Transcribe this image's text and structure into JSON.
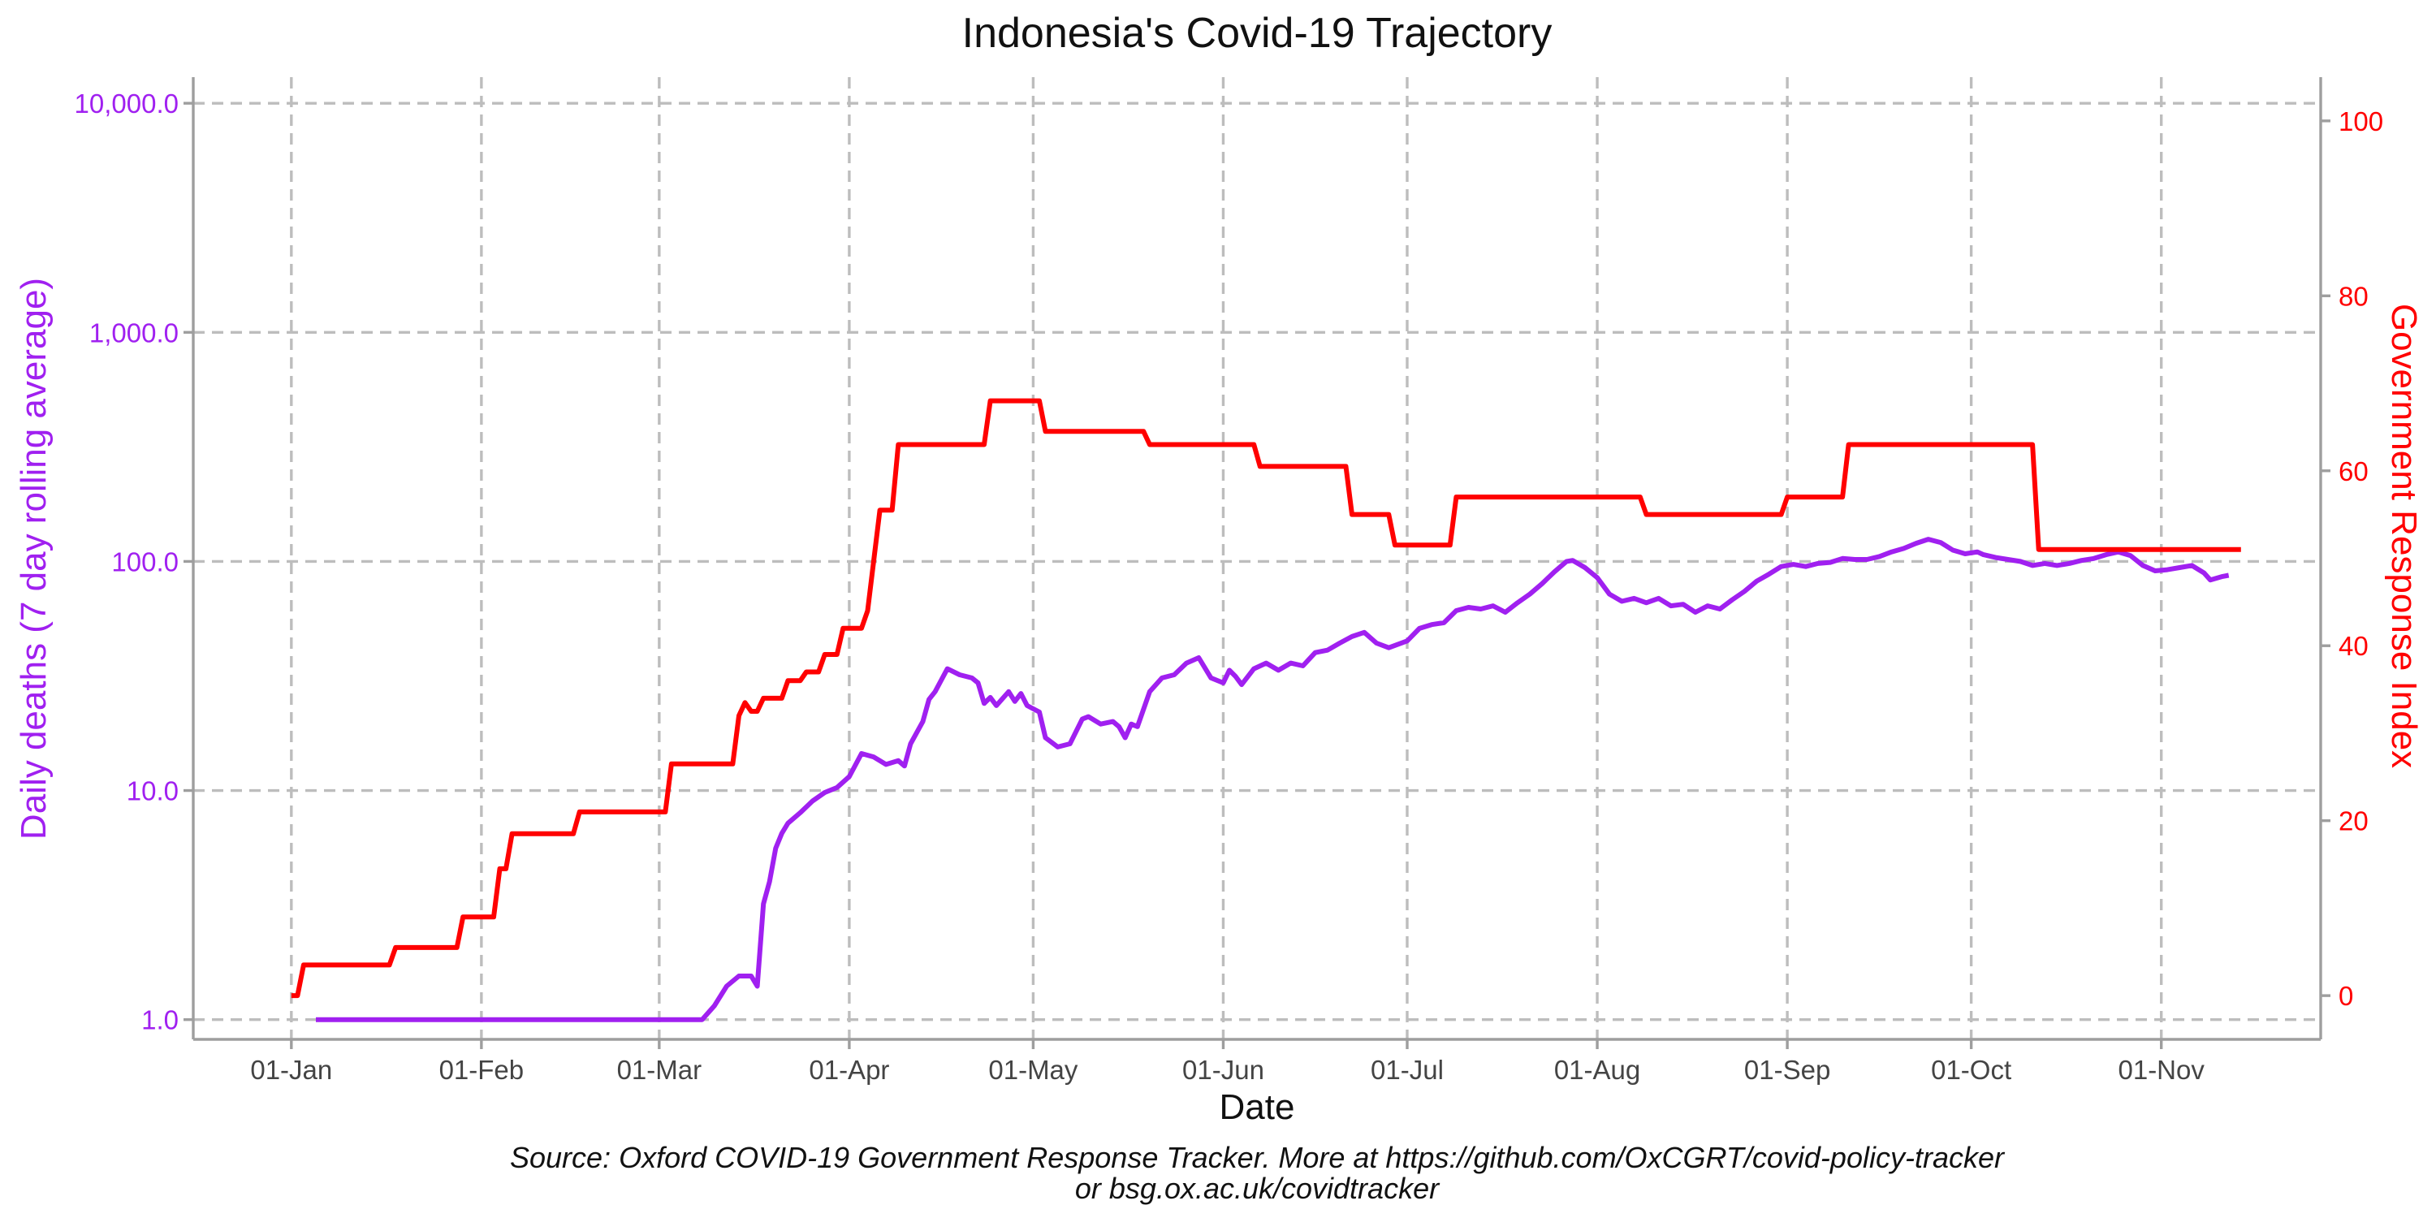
{
  "chart_data": {
    "type": "line",
    "title": "Indonesia's Covid-19 Trajectory",
    "xlabel": "Date",
    "ylabel_left": "Daily deaths (7 day rolling average)",
    "ylabel_right": "Government Response Index",
    "caption_lines": [
      "Source: Oxford COVID-19 Government Response Tracker. More at https://github.com/OxCGRT/covid-policy-tracker",
      "or bsg.ox.ac.uk/covidtracker"
    ],
    "x_ticks": [
      {
        "label": "01-Jan",
        "date": "2020-01-01"
      },
      {
        "label": "01-Feb",
        "date": "2020-02-01"
      },
      {
        "label": "01-Mar",
        "date": "2020-03-01"
      },
      {
        "label": "01-Apr",
        "date": "2020-04-01"
      },
      {
        "label": "01-May",
        "date": "2020-05-01"
      },
      {
        "label": "01-Jun",
        "date": "2020-06-01"
      },
      {
        "label": "01-Jul",
        "date": "2020-07-01"
      },
      {
        "label": "01-Aug",
        "date": "2020-08-01"
      },
      {
        "label": "01-Sep",
        "date": "2020-09-01"
      },
      {
        "label": "01-Oct",
        "date": "2020-10-01"
      },
      {
        "label": "01-Nov",
        "date": "2020-11-01"
      }
    ],
    "xlim": [
      "2019-12-16",
      "2020-11-27"
    ],
    "y_left": {
      "scale": "log10",
      "range": [
        0.82,
        13000
      ],
      "ticks": [
        1,
        10,
        100,
        1000,
        10000
      ],
      "tick_labels": [
        "1.0",
        "10.0",
        "100.0",
        "1,000.0",
        "10,000.0"
      ]
    },
    "y_right": {
      "scale": "linear",
      "range": [
        -5,
        105
      ],
      "ticks": [
        0,
        20,
        40,
        60,
        80,
        100
      ],
      "tick_labels": [
        "0",
        "20",
        "40",
        "60",
        "80",
        "100"
      ]
    },
    "grid": true,
    "colors": {
      "deaths": "#a020f0",
      "response": "#ff0000",
      "grid": "#bdbdbd",
      "axis": "#9e9e9e"
    },
    "series": [
      {
        "key": "deaths",
        "axis": "left",
        "color": "#a020f0",
        "points": [
          [
            "2020-01-05",
            1
          ],
          [
            "2020-03-08",
            1
          ],
          [
            "2020-03-10",
            1.15
          ],
          [
            "2020-03-12",
            1.4
          ],
          [
            "2020-03-14",
            1.55
          ],
          [
            "2020-03-16",
            1.55
          ],
          [
            "2020-03-17",
            1.4
          ],
          [
            "2020-03-18",
            3.2
          ],
          [
            "2020-03-19",
            4
          ],
          [
            "2020-03-20",
            5.6
          ],
          [
            "2020-03-21",
            6.5
          ],
          [
            "2020-03-22",
            7.2
          ],
          [
            "2020-03-24",
            8
          ],
          [
            "2020-03-26",
            9
          ],
          [
            "2020-03-28",
            9.8
          ],
          [
            "2020-03-30",
            10.3
          ],
          [
            "2020-04-01",
            11.5
          ],
          [
            "2020-04-03",
            14.5
          ],
          [
            "2020-04-05",
            14
          ],
          [
            "2020-04-07",
            13
          ],
          [
            "2020-04-09",
            13.5
          ],
          [
            "2020-04-10",
            12.8
          ],
          [
            "2020-04-11",
            16
          ],
          [
            "2020-04-13",
            20
          ],
          [
            "2020-04-14",
            25
          ],
          [
            "2020-04-15",
            27
          ],
          [
            "2020-04-17",
            34
          ],
          [
            "2020-04-19",
            32
          ],
          [
            "2020-04-21",
            31
          ],
          [
            "2020-04-22",
            29.5
          ],
          [
            "2020-04-23",
            24
          ],
          [
            "2020-04-24",
            25.5
          ],
          [
            "2020-04-25",
            23.5
          ],
          [
            "2020-04-27",
            27
          ],
          [
            "2020-04-28",
            24.5
          ],
          [
            "2020-04-29",
            26.5
          ],
          [
            "2020-04-30",
            23.5
          ],
          [
            "2020-05-02",
            22
          ],
          [
            "2020-05-03",
            17
          ],
          [
            "2020-05-05",
            15.5
          ],
          [
            "2020-05-07",
            16
          ],
          [
            "2020-05-09",
            20.5
          ],
          [
            "2020-05-10",
            21
          ],
          [
            "2020-05-12",
            19.5
          ],
          [
            "2020-05-14",
            20
          ],
          [
            "2020-05-15",
            19
          ],
          [
            "2020-05-16",
            17
          ],
          [
            "2020-05-17",
            19.5
          ],
          [
            "2020-05-18",
            19
          ],
          [
            "2020-05-20",
            27
          ],
          [
            "2020-05-22",
            31
          ],
          [
            "2020-05-24",
            32
          ],
          [
            "2020-05-26",
            36
          ],
          [
            "2020-05-28",
            38
          ],
          [
            "2020-05-30",
            31
          ],
          [
            "2020-06-01",
            29.5
          ],
          [
            "2020-06-02",
            33.5
          ],
          [
            "2020-06-03",
            31.5
          ],
          [
            "2020-06-04",
            29
          ],
          [
            "2020-06-06",
            34
          ],
          [
            "2020-06-08",
            36
          ],
          [
            "2020-06-10",
            33.5
          ],
          [
            "2020-06-12",
            36
          ],
          [
            "2020-06-14",
            35
          ],
          [
            "2020-06-16",
            40
          ],
          [
            "2020-06-18",
            41
          ],
          [
            "2020-06-20",
            44
          ],
          [
            "2020-06-22",
            47
          ],
          [
            "2020-06-24",
            49
          ],
          [
            "2020-06-26",
            44
          ],
          [
            "2020-06-28",
            42
          ],
          [
            "2020-07-01",
            45
          ],
          [
            "2020-07-03",
            51
          ],
          [
            "2020-07-05",
            53
          ],
          [
            "2020-07-07",
            54
          ],
          [
            "2020-07-09",
            61
          ],
          [
            "2020-07-11",
            63
          ],
          [
            "2020-07-13",
            62
          ],
          [
            "2020-07-15",
            64
          ],
          [
            "2020-07-17",
            60
          ],
          [
            "2020-07-19",
            66
          ],
          [
            "2020-07-21",
            72
          ],
          [
            "2020-07-23",
            80
          ],
          [
            "2020-07-25",
            90
          ],
          [
            "2020-07-27",
            100
          ],
          [
            "2020-07-28",
            101
          ],
          [
            "2020-07-30",
            94
          ],
          [
            "2020-08-01",
            85
          ],
          [
            "2020-08-03",
            72
          ],
          [
            "2020-08-05",
            67
          ],
          [
            "2020-08-07",
            69
          ],
          [
            "2020-08-09",
            66
          ],
          [
            "2020-08-11",
            69
          ],
          [
            "2020-08-13",
            64
          ],
          [
            "2020-08-15",
            65
          ],
          [
            "2020-08-17",
            60
          ],
          [
            "2020-08-19",
            64
          ],
          [
            "2020-08-21",
            62
          ],
          [
            "2020-08-23",
            68
          ],
          [
            "2020-08-25",
            74
          ],
          [
            "2020-08-27",
            82
          ],
          [
            "2020-08-29",
            88
          ],
          [
            "2020-08-31",
            95
          ],
          [
            "2020-09-02",
            97
          ],
          [
            "2020-09-04",
            95
          ],
          [
            "2020-09-06",
            98
          ],
          [
            "2020-09-08",
            99
          ],
          [
            "2020-09-10",
            103
          ],
          [
            "2020-09-12",
            102
          ],
          [
            "2020-09-14",
            102
          ],
          [
            "2020-09-16",
            105
          ],
          [
            "2020-09-18",
            110
          ],
          [
            "2020-09-20",
            114
          ],
          [
            "2020-09-22",
            120
          ],
          [
            "2020-09-24",
            125
          ],
          [
            "2020-09-26",
            121
          ],
          [
            "2020-09-28",
            112
          ],
          [
            "2020-09-30",
            108
          ],
          [
            "2020-10-02",
            110
          ],
          [
            "2020-10-03",
            107
          ],
          [
            "2020-10-05",
            104
          ],
          [
            "2020-10-07",
            102
          ],
          [
            "2020-10-09",
            100
          ],
          [
            "2020-10-11",
            96
          ],
          [
            "2020-10-13",
            98
          ],
          [
            "2020-10-15",
            96
          ],
          [
            "2020-10-17",
            98
          ],
          [
            "2020-10-19",
            101
          ],
          [
            "2020-10-21",
            103
          ],
          [
            "2020-10-23",
            107
          ],
          [
            "2020-10-25",
            110
          ],
          [
            "2020-10-27",
            106
          ],
          [
            "2020-10-29",
            96
          ],
          [
            "2020-10-31",
            91
          ],
          [
            "2020-11-02",
            92
          ],
          [
            "2020-11-04",
            94
          ],
          [
            "2020-11-06",
            96
          ],
          [
            "2020-11-08",
            89
          ],
          [
            "2020-11-09",
            83
          ],
          [
            "2020-11-11",
            86
          ],
          [
            "2020-11-12",
            87
          ]
        ]
      },
      {
        "key": "response",
        "axis": "right",
        "color": "#ff0000",
        "points": [
          [
            "2020-01-01",
            0
          ],
          [
            "2020-01-02",
            0
          ],
          [
            "2020-01-03",
            3.5
          ],
          [
            "2020-01-17",
            3.5
          ],
          [
            "2020-01-18",
            5.5
          ],
          [
            "2020-01-28",
            5.5
          ],
          [
            "2020-01-29",
            9
          ],
          [
            "2020-02-03",
            9
          ],
          [
            "2020-02-04",
            14.5
          ],
          [
            "2020-02-05",
            14.5
          ],
          [
            "2020-02-06",
            18.5
          ],
          [
            "2020-02-16",
            18.5
          ],
          [
            "2020-02-17",
            21
          ],
          [
            "2020-03-02",
            21
          ],
          [
            "2020-03-03",
            26.5
          ],
          [
            "2020-03-13",
            26.5
          ],
          [
            "2020-03-14",
            32
          ],
          [
            "2020-03-15",
            33.5
          ],
          [
            "2020-03-16",
            32.5
          ],
          [
            "2020-03-17",
            32.5
          ],
          [
            "2020-03-18",
            34
          ],
          [
            "2020-03-21",
            34
          ],
          [
            "2020-03-22",
            36
          ],
          [
            "2020-03-24",
            36
          ],
          [
            "2020-03-25",
            37
          ],
          [
            "2020-03-27",
            37
          ],
          [
            "2020-03-28",
            39
          ],
          [
            "2020-03-30",
            39
          ],
          [
            "2020-03-31",
            42
          ],
          [
            "2020-04-03",
            42
          ],
          [
            "2020-04-04",
            44
          ],
          [
            "2020-04-06",
            55.5
          ],
          [
            "2020-04-08",
            55.5
          ],
          [
            "2020-04-09",
            63
          ],
          [
            "2020-04-23",
            63
          ],
          [
            "2020-04-24",
            68
          ],
          [
            "2020-05-02",
            68
          ],
          [
            "2020-05-03",
            64.5
          ],
          [
            "2020-05-19",
            64.5
          ],
          [
            "2020-05-20",
            63
          ],
          [
            "2020-06-06",
            63
          ],
          [
            "2020-06-07",
            60.5
          ],
          [
            "2020-06-21",
            60.5
          ],
          [
            "2020-06-22",
            55
          ],
          [
            "2020-06-28",
            55
          ],
          [
            "2020-06-29",
            51.5
          ],
          [
            "2020-07-08",
            51.5
          ],
          [
            "2020-07-09",
            57
          ],
          [
            "2020-08-08",
            57
          ],
          [
            "2020-08-09",
            55
          ],
          [
            "2020-08-31",
            55
          ],
          [
            "2020-09-01",
            57
          ],
          [
            "2020-09-10",
            57
          ],
          [
            "2020-09-11",
            63
          ],
          [
            "2020-10-11",
            63
          ],
          [
            "2020-10-12",
            51
          ],
          [
            "2020-11-14",
            51
          ]
        ]
      }
    ]
  }
}
